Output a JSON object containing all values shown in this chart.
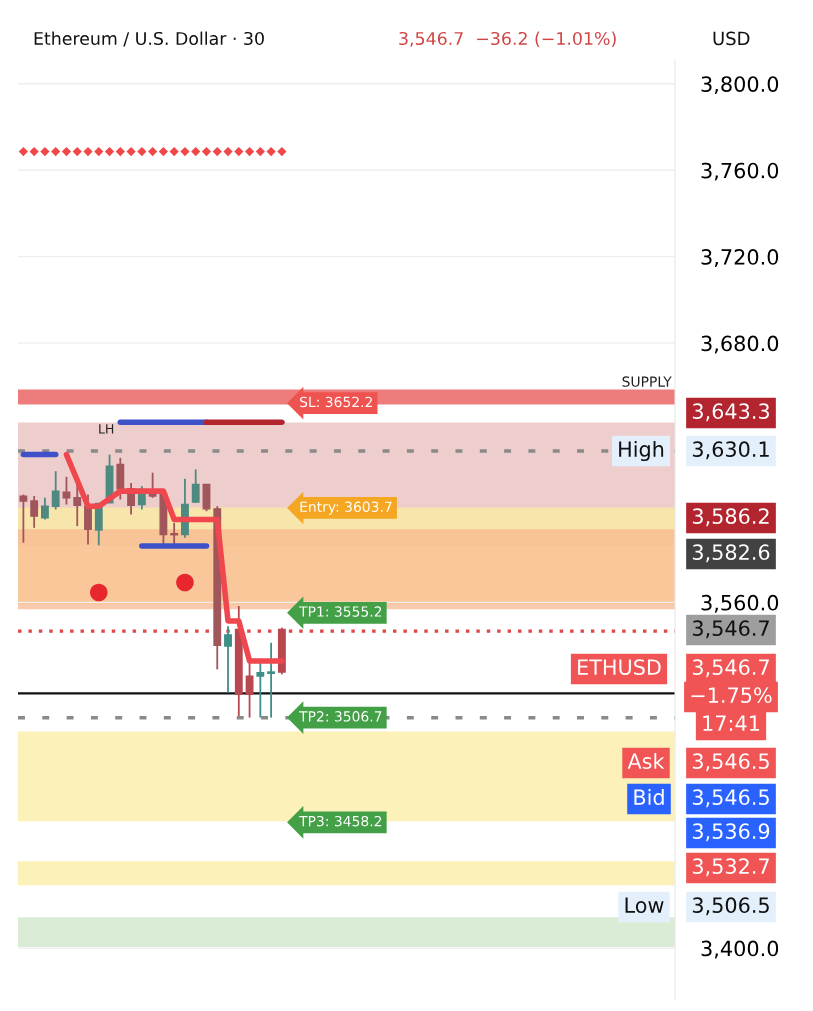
{
  "chart_data": {
    "type": "candlestick",
    "title": "Ethereum / U.S. Dollar · 30",
    "subtitle": "3,546.7  −36.2 (−1.01%)",
    "categories": [
      null,
      null,
      null,
      null,
      null,
      null,
      null,
      null,
      null,
      null,
      null,
      null,
      null,
      null,
      null,
      null,
      null,
      null,
      null,
      null,
      null,
      null,
      null,
      null,
      null,
      null,
      null,
      null,
      null,
      null,
      null,
      null,
      null,
      null,
      null,
      null,
      null,
      null,
      null,
      null,
      null,
      null,
      null,
      null,
      null,
      null,
      null,
      null,
      null,
      null,
      null,
      null,
      null,
      null,
      null,
      null,
      null,
      null,
      null,
      null,
      null
    ],
    "ohlc": [
      [
        3609.2,
        3609.9,
        3587.6,
        3606.9
      ],
      [
        3606.9,
        3609.2,
        3594.5,
        3599.9
      ],
      [
        3599.2,
        3608.4,
        3598.4,
        3604.5
      ],
      [
        3604.5,
        3620.7,
        3603.0,
        3611.5
      ],
      [
        3611.0,
        3618.1,
        3605.3,
        3608.4
      ],
      [
        3608.4,
        3614.6,
        3595.3,
        3604.9
      ],
      [
        3604.5,
        3609.9,
        3586.8,
        3593.8
      ],
      [
        3593.5,
        3605.8,
        3586.4,
        3605.8
      ],
      [
        3606.1,
        3628.4,
        3606.1,
        3623.0
      ],
      [
        3623.8,
        3626.9,
        3607.6,
        3612.6
      ],
      [
        3612.6,
        3615.3,
        3600.7,
        3604.9
      ],
      [
        3605.3,
        3613.8,
        3603.0,
        3612.3
      ],
      [
        3611.5,
        3620.0,
        3608.4,
        3609.2
      ],
      [
        3609.9,
        3610.7,
        3586.1,
        3591.4
      ],
      [
        3591.8,
        3596.8,
        3586.1,
        3591.3
      ],
      [
        3591.4,
        3617.2,
        3589.9,
        3605.3
      ],
      [
        3606.4,
        3621.5,
        3606.1,
        3614.6
      ],
      [
        3614.6,
        3614.6,
        3602.2,
        3603.3
      ],
      [
        3603.3,
        3604.5,
        3529.0,
        3540.1
      ],
      [
        3539.8,
        3549.0,
        3518.2,
        3544.9
      ],
      [
        3547.5,
        3558.3,
        3507.4,
        3517.5
      ],
      [
        3525.9,
        3532.1,
        3506.7,
        3517.5
      ],
      [
        3525.9,
        3532.1,
        3506.7,
        3527.5
      ],
      [
        3527.2,
        3541.3,
        3506.7,
        3527.8
      ],
      [
        3547.5,
        3548.3,
        3526.7,
        3527.8
      ],
      null,
      null,
      null,
      null,
      null,
      null,
      null,
      null,
      null,
      null,
      null,
      null,
      null,
      null,
      null,
      null,
      null,
      null,
      null,
      null,
      null,
      null,
      null,
      null,
      null,
      null,
      null,
      null,
      null,
      null,
      null,
      null,
      null,
      null,
      null,
      null
    ],
    "colors": [
      "#a0565a",
      "#a0565a",
      "#4e8a80",
      "#4e8a80",
      "#a0565a",
      "#a0565a",
      "#a0565a",
      "#4e8a80",
      "#4e8a80",
      "#a0565a",
      "#a0565a",
      "#4e8a80",
      "#a0565a",
      "#a0565a",
      "#a0565a",
      "#4e8a80",
      "#4e8a80",
      "#a0565a",
      "#a0565a",
      "#3d8f87",
      "#b8474f",
      "#b8474f",
      "#3d8f87",
      "#3d8f87",
      "#b8474f",
      null,
      null,
      null,
      null,
      null,
      null,
      null,
      null,
      null,
      null,
      null,
      null,
      null,
      null,
      null,
      null,
      null,
      null,
      null,
      null,
      null,
      null,
      null,
      null,
      null,
      null,
      null,
      null,
      null,
      null,
      null,
      null,
      null,
      null,
      null,
      null
    ],
    "series": [
      {
        "type": "line",
        "color": "#3f51c8",
        "values": [
          3628.4,
          3628.4,
          3628.4,
          3628.4,
          null,
          null,
          null,
          null,
          null,
          null,
          null,
          null,
          null,
          null,
          null,
          null,
          null,
          null,
          null,
          null,
          null,
          null,
          null,
          null,
          null,
          null,
          null,
          null,
          null,
          null,
          null,
          null,
          null,
          null,
          null,
          null,
          null,
          null,
          null,
          null,
          null,
          null,
          null,
          null,
          null,
          null,
          null,
          null,
          null,
          null,
          null,
          null,
          null,
          null,
          null,
          null,
          null,
          null,
          null,
          null,
          null
        ]
      },
      {
        "type": "line",
        "color": "#3f51c8",
        "values": [
          null,
          null,
          null,
          null,
          null,
          null,
          null,
          null,
          null,
          3643.4,
          3643.4,
          3643.4,
          3643.4,
          3643.4,
          3643.4,
          3643.4,
          3643.4,
          3643.4,
          null,
          null,
          null,
          null,
          null,
          null,
          null,
          null,
          null,
          null,
          null,
          null,
          null,
          null,
          null,
          null,
          null,
          null,
          null,
          null,
          null,
          null,
          null,
          null,
          null,
          null,
          null,
          null,
          null,
          null,
          null,
          null,
          null,
          null,
          null,
          null,
          null,
          null,
          null,
          null,
          null,
          null,
          null
        ]
      },
      {
        "type": "line",
        "color": "#3f51c8",
        "values": [
          null,
          null,
          null,
          null,
          null,
          null,
          null,
          null,
          null,
          null,
          null,
          3586.1,
          3586.1,
          3586.1,
          3586.1,
          3586.1,
          3586.1,
          3586.1,
          null,
          null,
          null,
          null,
          null,
          null,
          null,
          null,
          null,
          null,
          null,
          null,
          null,
          null,
          null,
          null,
          null,
          null,
          null,
          null,
          null,
          null,
          null,
          null,
          null,
          null,
          null,
          null,
          null,
          null,
          null,
          null,
          null,
          null,
          null,
          null,
          null,
          null,
          null,
          null,
          null,
          null,
          null
        ]
      },
      {
        "type": "line",
        "color": "#b2252f",
        "values": [
          null,
          null,
          null,
          null,
          null,
          null,
          null,
          null,
          null,
          null,
          null,
          null,
          null,
          null,
          null,
          null,
          null,
          3643.4,
          3643.4,
          3643.4,
          3643.4,
          3643.4,
          3643.4,
          3643.4,
          3643.4,
          null,
          null,
          null,
          null,
          null,
          null,
          null,
          null,
          null,
          null,
          null,
          null,
          null,
          null,
          null,
          null,
          null,
          null,
          null,
          null,
          null,
          null,
          null,
          null,
          null,
          null,
          null,
          null,
          null,
          null,
          null,
          null,
          null,
          null,
          null,
          null
        ]
      },
      {
        "type": "line",
        "color": "#f0474f",
        "values": [
          null,
          null,
          null,
          null,
          3628.4,
          3616.5,
          3604.5,
          3604.5,
          3608.0,
          3611.5,
          3611.5,
          3611.5,
          3611.5,
          3611.5,
          3598.4,
          3598.4,
          3598.4,
          3598.4,
          3598.4,
          3551.4,
          3551.4,
          3532.9,
          3532.9,
          3532.9,
          3532.9,
          null,
          null,
          null,
          null,
          null,
          null,
          null,
          null,
          null,
          null,
          null,
          null,
          null,
          null,
          null,
          null,
          null,
          null,
          null,
          null,
          null,
          null,
          null,
          null,
          null,
          null,
          null,
          null,
          null,
          null,
          null,
          null,
          null,
          null,
          null,
          null
        ]
      },
      {
        "type": "scatter",
        "marker": "diamond",
        "color": "#f04848",
        "values": [
          3768.6,
          3768.6,
          3768.6,
          3768.6,
          3768.6,
          3768.6,
          3768.6,
          3768.6,
          3768.6,
          3768.6,
          3768.6,
          3768.6,
          3768.6,
          3768.6,
          3768.6,
          3768.6,
          3768.6,
          3768.6,
          3768.6,
          3768.6,
          3768.6,
          3768.6,
          3768.6,
          3768.6,
          3768.6,
          null,
          null,
          null,
          null,
          null,
          null,
          null,
          null,
          null,
          null,
          null,
          null,
          null,
          null,
          null,
          null,
          null,
          null,
          null,
          null,
          null,
          null,
          null,
          null,
          null,
          null,
          null,
          null,
          null,
          null,
          null,
          null,
          null,
          null,
          null,
          null
        ]
      },
      {
        "type": "scatter",
        "marker": "circle",
        "color": "#e8262e",
        "values": [
          null,
          null,
          null,
          null,
          null,
          null,
          null,
          3564.6,
          null,
          null,
          null,
          null,
          null,
          null,
          null,
          3569.2,
          null,
          null,
          null,
          null,
          null,
          null,
          null,
          null,
          null,
          null,
          null,
          null,
          null,
          null,
          null,
          null,
          null,
          null,
          null,
          null,
          null,
          null,
          null,
          null,
          null,
          null,
          null,
          null,
          null,
          null,
          null,
          null,
          null,
          null,
          null,
          null,
          null,
          null,
          null,
          null,
          null,
          null,
          null,
          null,
          null
        ]
      }
    ],
    "ylim": [
      3376,
      3811
    ],
    "yticks": [
      {
        "value": 3400,
        "label": "3,400.0"
      },
      {
        "value": 3560,
        "label": "3,560.0"
      },
      {
        "value": 3680,
        "label": "3,680.0"
      },
      {
        "value": 3720,
        "label": "3,720.0"
      },
      {
        "value": 3760,
        "label": "3,760.0"
      },
      {
        "value": 3800,
        "label": "3,800.0"
      }
    ],
    "grid": "y",
    "ref_lines": [
      {
        "axis": "y",
        "value": 3630.1,
        "color": "#8a8a8a",
        "line_style": "dashed"
      },
      {
        "axis": "y",
        "value": 3546.7,
        "color": "#e04848",
        "line_style": "dotted"
      },
      {
        "axis": "y",
        "value": 3506.6,
        "color": "#8a8a8a",
        "line_style": "dashed"
      },
      {
        "axis": "y",
        "value": 3517.9,
        "color": "#111111",
        "line_style": "solid"
      }
    ],
    "bands": [
      {
        "axis": "y",
        "from": 3651.6,
        "to": 3658.5,
        "label": "SUPPLY",
        "color": "#e85050"
      },
      {
        "axis": "y",
        "from": 3586.4,
        "to": 3643.2,
        "color": "#e8bcbc"
      },
      {
        "axis": "y",
        "from": 3559.1,
        "to": 3603.9,
        "color": "#fbeca0"
      },
      {
        "axis": "y",
        "from": 3556.8,
        "to": 3593.8,
        "color": "#f8b890"
      },
      {
        "axis": "y",
        "from": 3458.7,
        "to": 3500.3,
        "color": "#fbeca0"
      },
      {
        "axis": "y",
        "from": 3429.1,
        "to": 3440.2,
        "color": "#fbeca0"
      },
      {
        "axis": "y",
        "from": 3400.5,
        "to": 3414.3,
        "color": "#cfe5c8"
      }
    ],
    "annotations": [
      {
        "text": "SL: 3652.2",
        "y": 3652.2
      },
      {
        "text": "Entry: 3603.7",
        "y": 3603.7
      },
      {
        "text": "TP1: 3555.2",
        "y": 3555.2
      },
      {
        "text": "TP2: 3506.7",
        "y": 3506.7
      },
      {
        "text": "TP3: 3458.2",
        "y": 3458.2
      },
      "USD",
      "LH",
      "3,643.3",
      "High",
      "3,630.1",
      "3,586.2",
      "3,582.6",
      "3,546.7",
      "ETHUSD",
      "3,546.7",
      "−1.75%",
      "17:41",
      "Ask",
      "3,546.5",
      "Bid",
      "3,546.5",
      "3,536.9",
      "3,532.7",
      "Low",
      "3,506.5"
    ]
  }
}
